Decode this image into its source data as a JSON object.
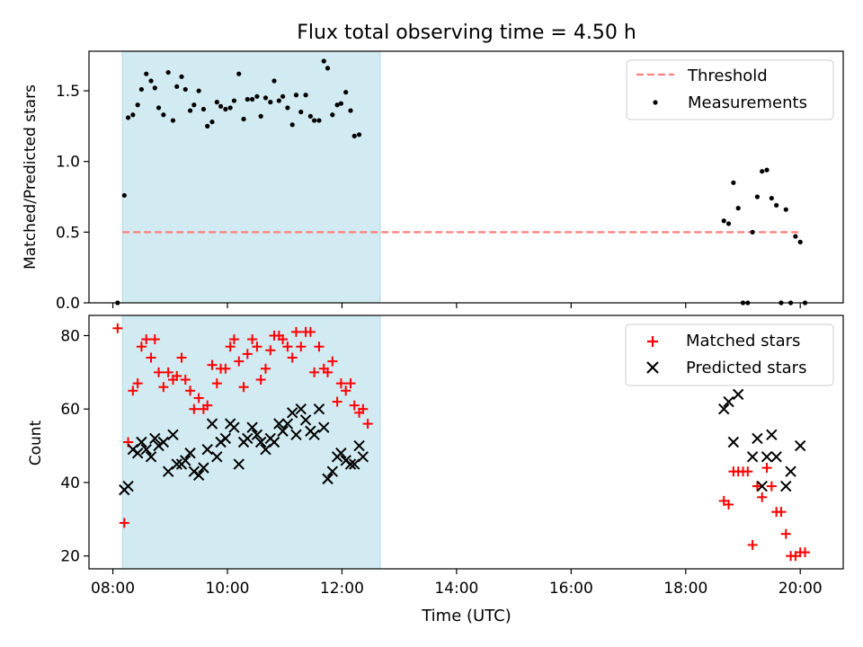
{
  "figure": {
    "title": "Flux total observing time = 4.50 h",
    "xlabel": "Time (UTC)",
    "x_tick_labels": [
      "08:00",
      "10:00",
      "12:00",
      "14:00",
      "16:00",
      "18:00",
      "20:00"
    ],
    "shaded_interval": [
      "08:10",
      "12:40"
    ],
    "shade_color": "#add8e6"
  },
  "chart_data": [
    {
      "type": "scatter",
      "ylabel": "Matched/Predicted stars",
      "xlim": [
        "07:35",
        "20:45"
      ],
      "ylim": [
        0,
        1.78
      ],
      "y_tick_labels": [
        "0.0",
        "0.5",
        "1.0",
        "1.5"
      ],
      "legend_position": "top-right",
      "threshold": {
        "name": "Threshold",
        "y": 0.5,
        "x_range": [
          "08:10",
          "20:00"
        ],
        "color": "#ff7f7f",
        "style": "dashed"
      },
      "series": [
        {
          "name": "Measurements",
          "color": "#000000",
          "marker": "dot",
          "points": [
            [
              "08:05",
              0.0
            ],
            [
              "08:12",
              0.76
            ],
            [
              "08:16",
              1.31
            ],
            [
              "08:21",
              1.33
            ],
            [
              "08:26",
              1.4
            ],
            [
              "08:30",
              1.51
            ],
            [
              "08:35",
              1.62
            ],
            [
              "08:40",
              1.57
            ],
            [
              "08:44",
              1.52
            ],
            [
              "08:48",
              1.38
            ],
            [
              "08:53",
              1.33
            ],
            [
              "08:58",
              1.63
            ],
            [
              "09:03",
              1.29
            ],
            [
              "09:07",
              1.53
            ],
            [
              "09:12",
              1.6
            ],
            [
              "09:16",
              1.51
            ],
            [
              "09:21",
              1.36
            ],
            [
              "09:25",
              1.4
            ],
            [
              "09:30",
              1.5
            ],
            [
              "09:35",
              1.37
            ],
            [
              "09:39",
              1.25
            ],
            [
              "09:44",
              1.28
            ],
            [
              "09:49",
              1.42
            ],
            [
              "09:53",
              1.39
            ],
            [
              "09:58",
              1.37
            ],
            [
              "10:03",
              1.38
            ],
            [
              "10:07",
              1.43
            ],
            [
              "10:12",
              1.62
            ],
            [
              "10:17",
              1.3
            ],
            [
              "10:21",
              1.44
            ],
            [
              "10:26",
              1.44
            ],
            [
              "10:31",
              1.46
            ],
            [
              "10:35",
              1.32
            ],
            [
              "10:40",
              1.45
            ],
            [
              "10:45",
              1.42
            ],
            [
              "10:49",
              1.57
            ],
            [
              "10:54",
              1.43
            ],
            [
              "10:58",
              1.46
            ],
            [
              "11:03",
              1.38
            ],
            [
              "11:08",
              1.26
            ],
            [
              "11:12",
              1.47
            ],
            [
              "11:17",
              1.35
            ],
            [
              "11:22",
              1.47
            ],
            [
              "11:27",
              1.32
            ],
            [
              "11:31",
              1.29
            ],
            [
              "11:36",
              1.29
            ],
            [
              "11:41",
              1.71
            ],
            [
              "11:45",
              1.66
            ],
            [
              "11:50",
              1.33
            ],
            [
              "11:55",
              1.4
            ],
            [
              "11:59",
              1.41
            ],
            [
              "12:04",
              1.49
            ],
            [
              "12:09",
              1.36
            ],
            [
              "12:13",
              1.18
            ],
            [
              "12:18",
              1.19
            ],
            [
              "18:40",
              0.58
            ],
            [
              "18:45",
              0.56
            ],
            [
              "18:50",
              0.85
            ],
            [
              "18:55",
              0.67
            ],
            [
              "19:00",
              0.0
            ],
            [
              "19:05",
              0.0
            ],
            [
              "19:10",
              0.5
            ],
            [
              "19:15",
              0.75
            ],
            [
              "19:20",
              0.93
            ],
            [
              "19:25",
              0.94
            ],
            [
              "19:30",
              0.74
            ],
            [
              "19:35",
              0.69
            ],
            [
              "19:40",
              0.0
            ],
            [
              "19:45",
              0.66
            ],
            [
              "19:50",
              0.0
            ],
            [
              "19:55",
              0.47
            ],
            [
              "20:00",
              0.43
            ],
            [
              "20:05",
              0.0
            ]
          ]
        }
      ]
    },
    {
      "type": "scatter",
      "ylabel": "Count",
      "xlim": [
        "07:35",
        "20:45"
      ],
      "ylim": [
        16.5,
        85.5
      ],
      "y_tick_labels": [
        "20",
        "40",
        "60",
        "80"
      ],
      "legend_position": "top-right",
      "series": [
        {
          "name": "Matched stars",
          "color": "#ff0000",
          "marker": "plus",
          "points": [
            [
              "08:05",
              82
            ],
            [
              "08:12",
              29
            ],
            [
              "08:16",
              51
            ],
            [
              "08:21",
              65
            ],
            [
              "08:26",
              67
            ],
            [
              "08:30",
              77
            ],
            [
              "08:35",
              79
            ],
            [
              "08:40",
              74
            ],
            [
              "08:44",
              79
            ],
            [
              "08:48",
              70
            ],
            [
              "08:53",
              66
            ],
            [
              "08:58",
              70
            ],
            [
              "09:03",
              68
            ],
            [
              "09:07",
              69
            ],
            [
              "09:12",
              74
            ],
            [
              "09:16",
              68
            ],
            [
              "09:21",
              65
            ],
            [
              "09:25",
              60
            ],
            [
              "09:30",
              63
            ],
            [
              "09:35",
              60
            ],
            [
              "09:39",
              61
            ],
            [
              "09:44",
              72
            ],
            [
              "09:49",
              67
            ],
            [
              "09:53",
              71
            ],
            [
              "09:58",
              71
            ],
            [
              "10:03",
              77
            ],
            [
              "10:07",
              79
            ],
            [
              "10:12",
              73
            ],
            [
              "10:17",
              66
            ],
            [
              "10:21",
              75
            ],
            [
              "10:26",
              79
            ],
            [
              "10:31",
              77
            ],
            [
              "10:35",
              68
            ],
            [
              "10:40",
              71
            ],
            [
              "10:45",
              76
            ],
            [
              "10:49",
              80
            ],
            [
              "10:54",
              80
            ],
            [
              "10:58",
              79
            ],
            [
              "11:03",
              77
            ],
            [
              "11:08",
              74
            ],
            [
              "11:12",
              81
            ],
            [
              "11:17",
              77
            ],
            [
              "11:22",
              81
            ],
            [
              "11:27",
              81
            ],
            [
              "11:31",
              70
            ],
            [
              "11:36",
              77
            ],
            [
              "11:41",
              71
            ],
            [
              "11:45",
              70
            ],
            [
              "11:50",
              73
            ],
            [
              "11:55",
              62
            ],
            [
              "11:59",
              67
            ],
            [
              "12:04",
              65
            ],
            [
              "12:09",
              67
            ],
            [
              "12:13",
              61
            ],
            [
              "12:18",
              59
            ],
            [
              "12:22",
              60
            ],
            [
              "12:27",
              56
            ],
            [
              "18:40",
              35
            ],
            [
              "18:45",
              34
            ],
            [
              "18:50",
              43
            ],
            [
              "18:55",
              43
            ],
            [
              "19:00",
              43
            ],
            [
              "19:05",
              43
            ],
            [
              "19:10",
              23
            ],
            [
              "19:15",
              39
            ],
            [
              "19:20",
              36
            ],
            [
              "19:25",
              44
            ],
            [
              "19:30",
              39
            ],
            [
              "19:35",
              32
            ],
            [
              "19:40",
              32
            ],
            [
              "19:45",
              26
            ],
            [
              "19:50",
              20
            ],
            [
              "19:55",
              20
            ],
            [
              "20:00",
              21
            ],
            [
              "20:05",
              21
            ]
          ]
        },
        {
          "name": "Predicted stars",
          "color": "#000000",
          "marker": "x",
          "points": [
            [
              "08:12",
              38
            ],
            [
              "08:16",
              39
            ],
            [
              "08:21",
              49
            ],
            [
              "08:26",
              48
            ],
            [
              "08:30",
              51
            ],
            [
              "08:35",
              49
            ],
            [
              "08:40",
              47
            ],
            [
              "08:44",
              52
            ],
            [
              "08:48",
              50
            ],
            [
              "08:53",
              51
            ],
            [
              "08:58",
              43
            ],
            [
              "09:03",
              53
            ],
            [
              "09:07",
              45
            ],
            [
              "09:12",
              45
            ],
            [
              "09:16",
              46
            ],
            [
              "09:21",
              48
            ],
            [
              "09:25",
              43
            ],
            [
              "09:30",
              42
            ],
            [
              "09:35",
              44
            ],
            [
              "09:39",
              49
            ],
            [
              "09:44",
              56
            ],
            [
              "09:49",
              47
            ],
            [
              "09:53",
              51
            ],
            [
              "09:58",
              52
            ],
            [
              "10:03",
              56
            ],
            [
              "10:07",
              55
            ],
            [
              "10:12",
              45
            ],
            [
              "10:17",
              51
            ],
            [
              "10:21",
              52
            ],
            [
              "10:26",
              55
            ],
            [
              "10:31",
              53
            ],
            [
              "10:35",
              51
            ],
            [
              "10:40",
              49
            ],
            [
              "10:45",
              52
            ],
            [
              "10:49",
              51
            ],
            [
              "10:54",
              56
            ],
            [
              "10:58",
              54
            ],
            [
              "11:03",
              56
            ],
            [
              "11:08",
              59
            ],
            [
              "11:12",
              53
            ],
            [
              "11:17",
              60
            ],
            [
              "11:22",
              57
            ],
            [
              "11:27",
              54
            ],
            [
              "11:31",
              53
            ],
            [
              "11:36",
              60
            ],
            [
              "11:41",
              55
            ],
            [
              "11:45",
              41
            ],
            [
              "11:50",
              43
            ],
            [
              "11:55",
              47
            ],
            [
              "11:59",
              48
            ],
            [
              "12:04",
              46
            ],
            [
              "12:09",
              45
            ],
            [
              "12:13",
              45
            ],
            [
              "12:18",
              50
            ],
            [
              "12:22",
              47
            ],
            [
              "18:40",
              60
            ],
            [
              "18:45",
              62
            ],
            [
              "18:50",
              51
            ],
            [
              "18:55",
              64
            ],
            [
              "19:10",
              47
            ],
            [
              "19:15",
              52
            ],
            [
              "19:20",
              39
            ],
            [
              "19:25",
              47
            ],
            [
              "19:30",
              53
            ],
            [
              "19:35",
              47
            ],
            [
              "19:45",
              39
            ],
            [
              "19:50",
              43
            ],
            [
              "20:00",
              50
            ]
          ]
        }
      ]
    }
  ]
}
